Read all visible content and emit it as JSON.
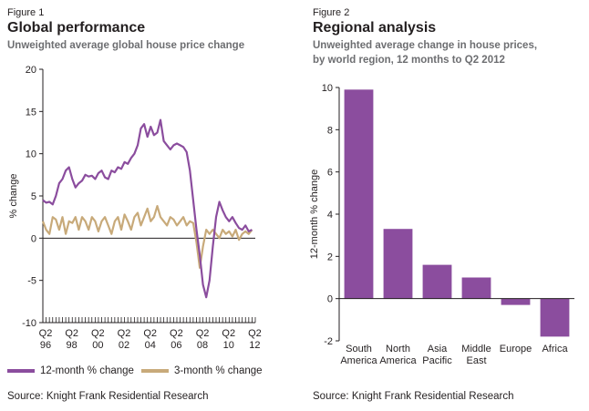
{
  "figure1": {
    "label": "Figure 1",
    "title": "Global performance",
    "subtitle": "Unweighted average global house price change",
    "source": "Source: Knight Frank Residential Research",
    "legend": [
      {
        "name": "12-month % change",
        "color": "#8b4d9e"
      },
      {
        "name": "3-month % change",
        "color": "#c8aa7a"
      }
    ]
  },
  "figure2": {
    "label": "Figure 2",
    "title": "Regional analysis",
    "subtitle_lines": [
      "Unweighted average change in house prices,",
      "by world region, 12 months to Q2 2012"
    ],
    "source": "Source: Knight Frank Residential Research"
  },
  "chart_data": [
    {
      "type": "line",
      "title": "Global performance",
      "ylabel": "% change",
      "ylim": [
        -10,
        20
      ],
      "yticks": [
        20,
        15,
        10,
        5,
        0,
        -5,
        -10
      ],
      "xlim": [
        1996.25,
        2012.5
      ],
      "xticks": [
        {
          "q": "Q2",
          "y": "96",
          "at": 1996.25
        },
        {
          "q": "Q2",
          "y": "98",
          "at": 1998.25
        },
        {
          "q": "Q2",
          "y": "00",
          "at": 2000.25
        },
        {
          "q": "Q2",
          "y": "02",
          "at": 2002.25
        },
        {
          "q": "Q2",
          "y": "04",
          "at": 2004.25
        },
        {
          "q": "Q2",
          "y": "06",
          "at": 2006.25
        },
        {
          "q": "Q2",
          "y": "08",
          "at": 2008.25
        },
        {
          "q": "Q2",
          "y": "10",
          "at": 2010.25
        },
        {
          "q": "Q2",
          "y": "12",
          "at": 2012.25
        }
      ],
      "series": [
        {
          "name": "12-month % change",
          "color": "#8b4d9e",
          "x": [
            1996.25,
            1996.5,
            1996.75,
            1997.0,
            1997.25,
            1997.5,
            1997.75,
            1998.0,
            1998.25,
            1998.5,
            1998.75,
            1999.0,
            1999.25,
            1999.5,
            1999.75,
            2000.0,
            2000.25,
            2000.5,
            2000.75,
            2001.0,
            2001.25,
            2001.5,
            2001.75,
            2002.0,
            2002.25,
            2002.5,
            2002.75,
            2003.0,
            2003.25,
            2003.5,
            2003.75,
            2004.0,
            2004.25,
            2004.5,
            2004.75,
            2005.0,
            2005.25,
            2005.5,
            2005.75,
            2006.0,
            2006.25,
            2006.5,
            2006.75,
            2007.0,
            2007.25,
            2007.5,
            2007.75,
            2008.0,
            2008.25,
            2008.5,
            2008.75,
            2009.0,
            2009.25,
            2009.5,
            2009.75,
            2010.0,
            2010.25,
            2010.5,
            2010.75,
            2011.0,
            2011.25,
            2011.5,
            2011.75,
            2012.0,
            2012.25
          ],
          "y": [
            4.5,
            4.2,
            4.3,
            4.0,
            5.0,
            6.5,
            7.0,
            8.0,
            8.4,
            7.0,
            6.0,
            6.5,
            6.8,
            7.5,
            7.3,
            7.4,
            7.0,
            7.7,
            8.0,
            7.2,
            7.0,
            8.0,
            7.8,
            8.4,
            8.2,
            9.0,
            8.8,
            9.5,
            10.0,
            11.0,
            13.0,
            13.5,
            12.0,
            13.2,
            12.2,
            12.5,
            14.0,
            11.5,
            11.0,
            10.5,
            11.0,
            11.2,
            11.0,
            10.8,
            10.2,
            8.0,
            4.5,
            1.0,
            -2.0,
            -5.5,
            -7.0,
            -5.0,
            -1.0,
            2.5,
            4.3,
            3.3,
            2.5,
            2.0,
            2.5,
            1.8,
            1.2,
            1.0,
            1.5,
            0.8,
            1.0
          ]
        },
        {
          "name": "3-month % change",
          "color": "#c8aa7a",
          "x": [
            1996.25,
            1996.5,
            1996.75,
            1997.0,
            1997.25,
            1997.5,
            1997.75,
            1998.0,
            1998.25,
            1998.5,
            1998.75,
            1999.0,
            1999.25,
            1999.5,
            1999.75,
            2000.0,
            2000.25,
            2000.5,
            2000.75,
            2001.0,
            2001.25,
            2001.5,
            2001.75,
            2002.0,
            2002.25,
            2002.5,
            2002.75,
            2003.0,
            2003.25,
            2003.5,
            2003.75,
            2004.0,
            2004.25,
            2004.5,
            2004.75,
            2005.0,
            2005.25,
            2005.5,
            2005.75,
            2006.0,
            2006.25,
            2006.5,
            2006.75,
            2007.0,
            2007.25,
            2007.5,
            2007.75,
            2008.0,
            2008.25,
            2008.5,
            2008.75,
            2009.0,
            2009.25,
            2009.5,
            2009.75,
            2010.0,
            2010.25,
            2010.5,
            2010.75,
            2011.0,
            2011.25,
            2011.5,
            2011.75,
            2012.0,
            2012.25
          ],
          "y": [
            2.0,
            1.0,
            0.5,
            2.5,
            2.2,
            1.0,
            2.5,
            0.5,
            2.0,
            1.8,
            2.5,
            1.0,
            2.5,
            2.0,
            1.0,
            2.5,
            2.0,
            0.8,
            2.0,
            2.5,
            1.5,
            0.5,
            2.0,
            2.5,
            1.0,
            2.8,
            2.0,
            1.0,
            2.5,
            3.0,
            1.5,
            2.5,
            3.5,
            2.0,
            2.5,
            3.8,
            2.5,
            2.0,
            1.5,
            2.5,
            2.2,
            1.5,
            2.0,
            2.5,
            1.5,
            2.0,
            1.8,
            -0.5,
            -3.5,
            -1.0,
            1.0,
            0.5,
            1.0,
            0.5,
            0.0,
            1.0,
            0.5,
            0.8,
            0.2,
            1.0,
            -0.2,
            0.5,
            0.8,
            0.5,
            1.0
          ]
        }
      ]
    },
    {
      "type": "bar",
      "title": "Regional analysis",
      "ylabel": "12-month % change",
      "ylim": [
        -2,
        10
      ],
      "yticks": [
        10,
        8,
        6,
        4,
        2,
        0,
        -2
      ],
      "categories": [
        [
          "South",
          "America"
        ],
        [
          "North",
          "America"
        ],
        [
          "Asia",
          "Pacific"
        ],
        [
          "Middle",
          "East"
        ],
        [
          "Europe"
        ],
        [
          "Africa"
        ]
      ],
      "values": [
        9.9,
        3.3,
        1.6,
        1.0,
        -0.3,
        -1.8
      ],
      "color": "#8b4d9e"
    }
  ]
}
